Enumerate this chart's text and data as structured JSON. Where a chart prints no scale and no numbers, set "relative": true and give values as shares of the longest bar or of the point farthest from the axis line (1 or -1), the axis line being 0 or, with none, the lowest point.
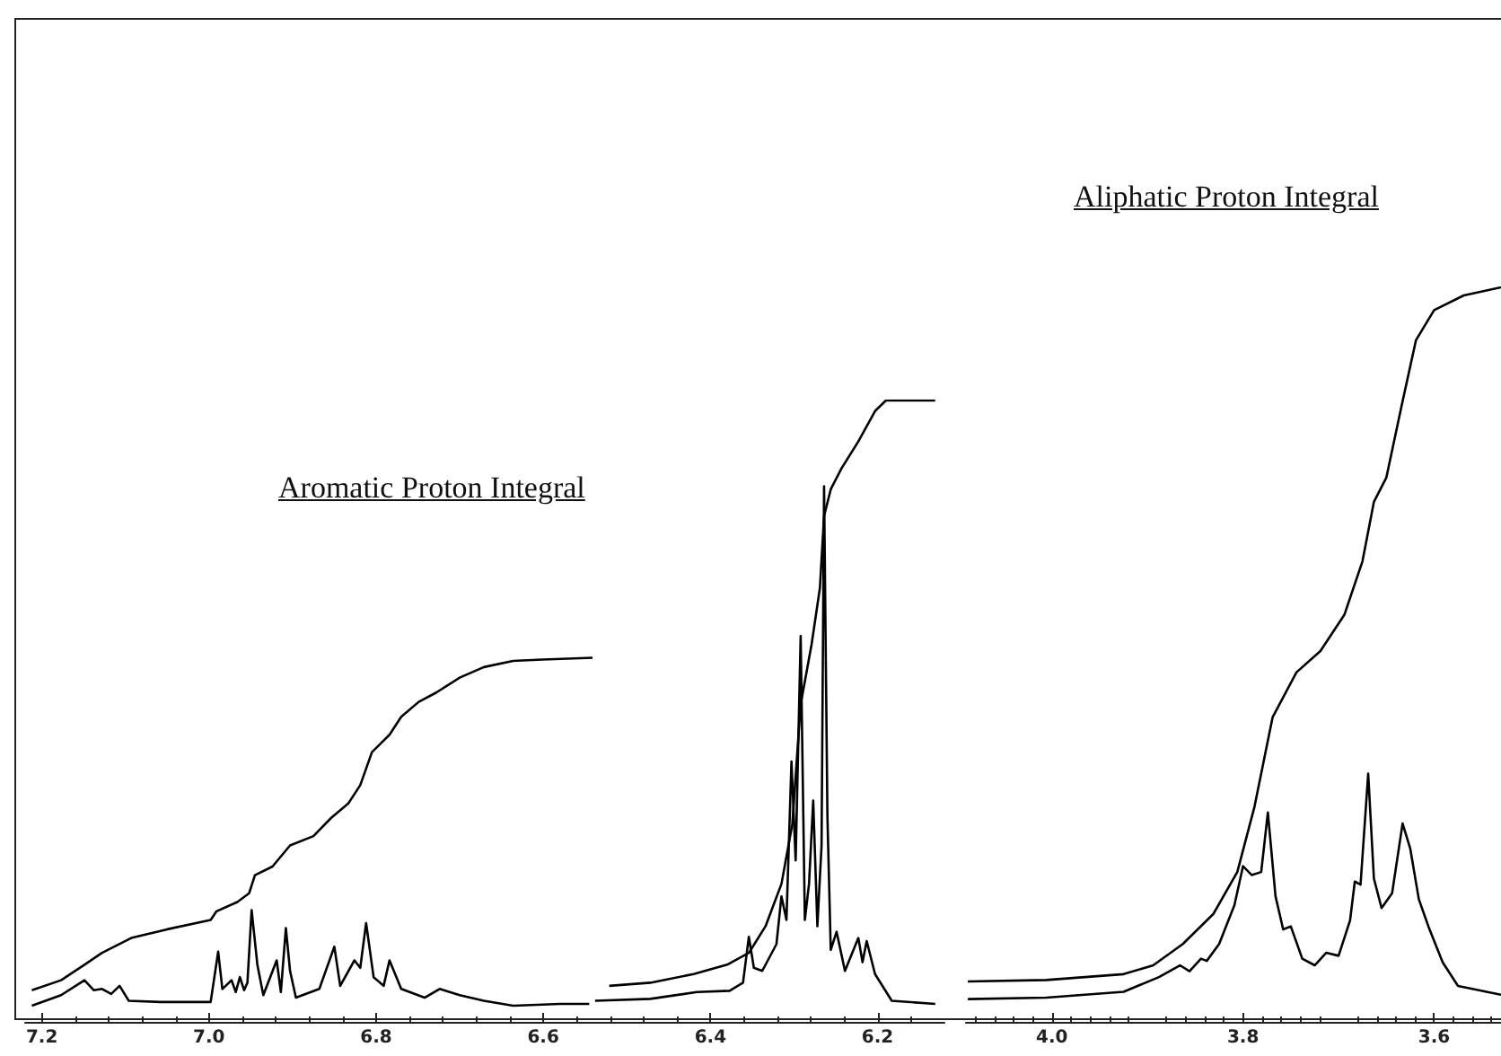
{
  "chart_data": [
    {
      "type": "line",
      "relative": true,
      "xlim": [
        7.22,
        6.12
      ],
      "xticks": [
        7.2,
        {
          "value": 7,
          "label": "7.0"
        },
        6.8,
        6.6,
        6.4,
        6.2
      ],
      "annotations": [
        "Aromatic Proton Integral"
      ],
      "series": [
        {
          "color": "#000000",
          "x": [
            7.212,
            7.177,
            7.149,
            7.138,
            7.128,
            7.117,
            7.107,
            7.096,
            7.058,
            6.998,
            6.989,
            6.984,
            6.973,
            6.968,
            6.963,
            6.958,
            6.954,
            6.949,
            6.942,
            6.935,
            6.919,
            6.914,
            6.908,
            6.903,
            6.896,
            6.868,
            6.85,
            6.843,
            6.826,
            6.819,
            6.812,
            6.803,
            6.791,
            6.784,
            6.77,
            6.742,
            6.724,
            6.7,
            6.671,
            6.636,
            6.58,
            6.545,
            6.542,
            6.538,
            6.472,
            6.416,
            6.377,
            6.361,
            6.354,
            6.348,
            6.338,
            6.321,
            6.315,
            6.309,
            6.303,
            6.298,
            6.292,
            6.287,
            6.282,
            6.277,
            6.272,
            6.267,
            6.264,
            6.26,
            6.256,
            6.249,
            6.239,
            6.223,
            6.218,
            6.213,
            6.203,
            6.183,
            6.131
          ],
          "values": [
            0.026,
            0.043,
            0.067,
            0.051,
            0.053,
            0.045,
            0.058,
            0.034,
            0.032,
            0.032,
            0.113,
            0.053,
            0.067,
            0.048,
            0.072,
            0.051,
            0.063,
            0.18,
            0.091,
            0.043,
            0.099,
            0.048,
            0.151,
            0.082,
            0.039,
            0.053,
            0.121,
            0.058,
            0.099,
            0.087,
            0.159,
            0.072,
            0.058,
            0.099,
            0.053,
            0.039,
            0.053,
            0.043,
            0.034,
            0.026,
            0.029,
            0.029,
            null,
            0.034,
            0.037,
            0.048,
            0.05,
            0.063,
            0.137,
            0.087,
            0.082,
            0.125,
            0.202,
            0.164,
            0.419,
            0.26,
            0.621,
            0.164,
            0.222,
            0.356,
            0.154,
            0.284,
            0.862,
            0.332,
            0.116,
            0.145,
            0.082,
            0.135,
            0.096,
            0.13,
            0.077,
            0.034,
            0.029
          ]
        },
        {
          "color": "#000000",
          "x": [
            7.212,
            7.177,
            7.149,
            7.128,
            7.093,
            7.05,
            6.998,
            6.991,
            6.966,
            6.952,
            6.945,
            6.924,
            6.903,
            6.875,
            6.854,
            6.833,
            6.819,
            6.805,
            6.784,
            6.77,
            6.749,
            6.728,
            6.7,
            6.671,
            6.636,
            6.601,
            6.541,
            6.53,
            6.521,
            6.472,
            6.42,
            6.38,
            6.354,
            6.334,
            6.315,
            6.302,
            6.292,
            6.279,
            6.269,
            6.264,
            6.256,
            6.243,
            6.223,
            6.203,
            6.19,
            6.131
          ],
          "values": [
            0.051,
            0.067,
            0.092,
            0.111,
            0.135,
            0.149,
            0.164,
            0.178,
            0.193,
            0.207,
            0.236,
            0.25,
            0.284,
            0.299,
            0.328,
            0.352,
            0.381,
            0.434,
            0.462,
            0.491,
            0.515,
            0.53,
            0.554,
            0.571,
            0.581,
            0.583,
            0.586,
            null,
            0.058,
            0.063,
            0.077,
            0.092,
            0.111,
            0.154,
            0.222,
            0.318,
            0.511,
            0.607,
            0.698,
            0.814,
            0.857,
            0.891,
            0.934,
            0.983,
            1.0,
            1.0
          ]
        }
      ]
    },
    {
      "type": "line",
      "relative": true,
      "xlim": [
        4.09,
        3.53
      ],
      "xticks": [
        {
          "value": 4,
          "label": "4.0"
        },
        3.8,
        3.6
      ],
      "annotations": [
        "Aliphatic Proton Integral"
      ],
      "series": [
        {
          "color": "#000000",
          "x": [
            4.088,
            4.006,
            3.925,
            3.888,
            3.866,
            3.856,
            3.844,
            3.838,
            3.825,
            3.809,
            3.8,
            3.791,
            3.781,
            3.774,
            3.766,
            3.758,
            3.75,
            3.738,
            3.725,
            3.713,
            3.7,
            3.688,
            3.683,
            3.677,
            3.669,
            3.663,
            3.655,
            3.644,
            3.633,
            3.625,
            3.616,
            3.606,
            3.591,
            3.575,
            3.53
          ],
          "values": [
            0.031,
            0.033,
            0.041,
            0.061,
            0.077,
            0.069,
            0.086,
            0.083,
            0.106,
            0.159,
            0.212,
            0.2,
            0.204,
            0.285,
            0.171,
            0.126,
            0.13,
            0.086,
            0.077,
            0.094,
            0.09,
            0.138,
            0.191,
            0.187,
            0.338,
            0.195,
            0.155,
            0.175,
            0.27,
            0.236,
            0.167,
            0.13,
            0.081,
            0.049,
            0.037
          ]
        },
        {
          "color": "#000000",
          "x": [
            4.088,
            4.006,
            3.925,
            3.894,
            3.863,
            3.831,
            3.806,
            3.788,
            3.769,
            3.744,
            3.719,
            3.694,
            3.675,
            3.663,
            3.65,
            3.634,
            3.619,
            3.6,
            3.569,
            3.53
          ],
          "values": [
            0.055,
            0.057,
            0.065,
            0.077,
            0.106,
            0.147,
            0.204,
            0.293,
            0.415,
            0.476,
            0.505,
            0.554,
            0.627,
            0.708,
            0.741,
            0.839,
            0.928,
            0.969,
            0.989,
            1.0
          ]
        }
      ]
    }
  ]
}
